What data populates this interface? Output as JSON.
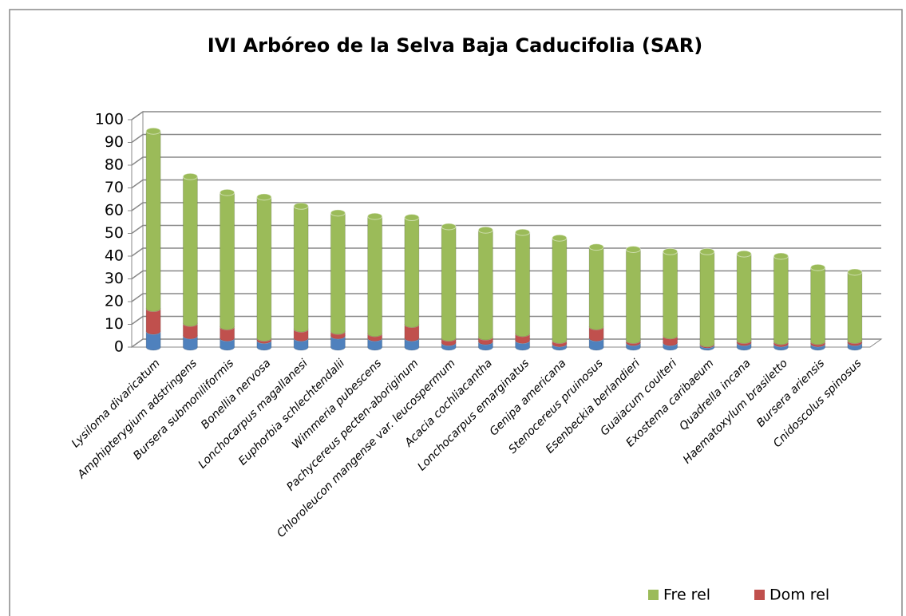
{
  "chart_data": {
    "type": "bar",
    "stacked": true,
    "title": "IVI Arbóreo de la Selva Baja Caducifolia (SAR)",
    "categories": [
      "Lysiloma divaricatum",
      "Amphipterygium adstringens",
      "Bursera submoniliformis",
      "Bonellia nervosa",
      "Lonchocarpus magallanesi",
      "Euphorbia schlechtendalii",
      "Wimmeria pubescens",
      "Pachycereus pecten-aboriginum",
      "Chloroleucon mangense var. leucospermum",
      "Acacia cochliacantha",
      "Lonchocarpus emarginatus",
      "Genipa americana",
      "Stenocereus pruinosus",
      "Esenbeckia berlandieri",
      "Guaiacum coulteri",
      "Exostema caribaeum",
      "Quadrella incana",
      "Haematoxylum brasiletto",
      "Bursera ariensis",
      "Cnidoscolus spinosus"
    ],
    "series": [
      {
        "color": "#4f81bd",
        "values": [
          7,
          5,
          4,
          3,
          4,
          5,
          4,
          4,
          2,
          2.5,
          3,
          1.5,
          4,
          2,
          2,
          1,
          2,
          1.5,
          1.5,
          2
        ]
      },
      {
        "name": "Dom rel",
        "color": "#c0504d",
        "values": [
          10,
          5.5,
          5,
          1,
          4,
          2,
          2,
          6,
          2,
          2,
          3,
          1.5,
          5,
          1,
          3,
          0.5,
          1,
          1,
          1,
          1
        ]
      },
      {
        "name": "Fre rel",
        "color": "#9bbb59",
        "values": [
          78,
          64.5,
          59,
          62,
          54,
          52,
          51.5,
          47,
          49,
          47,
          44.5,
          45,
          35,
          40,
          37,
          40.5,
          38,
          37.5,
          32.5,
          30
        ]
      }
    ],
    "ylim": [
      0,
      100
    ],
    "yticks": [
      0,
      10,
      20,
      30,
      40,
      50,
      60,
      70,
      80,
      90,
      100
    ],
    "grid": true
  }
}
